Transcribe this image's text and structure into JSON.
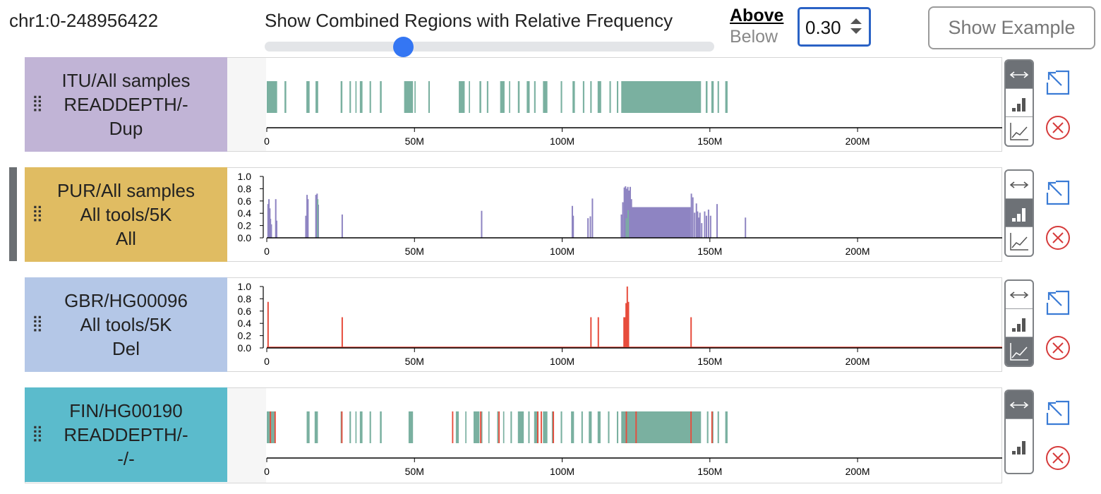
{
  "region": "chr1:0-248956422",
  "filter": {
    "title": "Show Combined Regions with Relative Frequency",
    "slider_value": 0.3,
    "above_label": "Above",
    "below_label": "Below",
    "threshold": "0.30",
    "mode_selected": "Above"
  },
  "show_example_label": "Show Example",
  "axis": {
    "ticks": [
      "0",
      "50M",
      "100M",
      "150M",
      "200M"
    ],
    "tick_values": [
      0,
      50000000,
      100000000,
      150000000,
      200000000
    ],
    "genome_length": 248956422
  },
  "bar_axis_ticks": [
    "1.0",
    "0.8",
    "0.6",
    "0.4",
    "0.2",
    "0.0"
  ],
  "colors": {
    "dup": "#7ab0a0",
    "del": "#e74c3c",
    "bars_all": "#8e84c2",
    "slider": "#3476f3"
  },
  "tracks": [
    {
      "id": "itu",
      "label_lines": [
        "ITU/All samples",
        "READDEPTH/-",
        "Dup"
      ],
      "bg": "#c1b4d6",
      "selected": false,
      "view": "segments",
      "active_ctrl": "expand",
      "controls": [
        "expand-icon",
        "bar-chart-icon",
        "line-chart-icon"
      ]
    },
    {
      "id": "pur",
      "label_lines": [
        "PUR/All samples",
        "All tools/5K",
        "All"
      ],
      "bg": "#e0bc62",
      "selected": true,
      "view": "bars",
      "active_ctrl": "bar",
      "controls": [
        "expand-icon",
        "bar-chart-icon",
        "line-chart-icon"
      ]
    },
    {
      "id": "gbr",
      "label_lines": [
        "GBR/HG00096",
        "All tools/5K",
        "Del"
      ],
      "bg": "#b4c7e7",
      "selected": false,
      "view": "line",
      "active_ctrl": "line",
      "controls": [
        "expand-icon",
        "bar-chart-icon",
        "line-chart-icon"
      ]
    },
    {
      "id": "fin",
      "label_lines": [
        "FIN/HG00190",
        "READDEPTH/-",
        "-/-"
      ],
      "bg": "#5bbbcc",
      "selected": false,
      "view": "segments",
      "active_ctrl": "expand",
      "controls": [
        "expand-icon",
        "bar-chart-icon"
      ]
    }
  ]
}
